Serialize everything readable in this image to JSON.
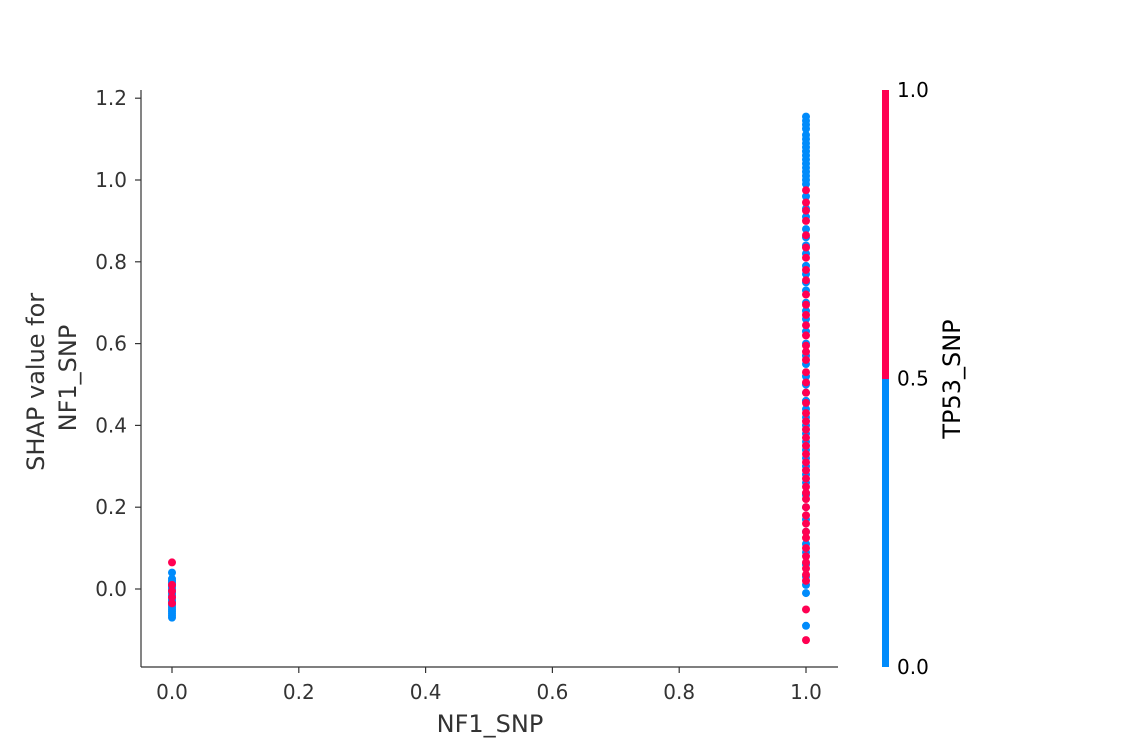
{
  "chart_data": {
    "type": "scatter",
    "xlabel": "NF1_SNP",
    "ylabel_lines": [
      "SHAP value for",
      "NF1_SNP"
    ],
    "xlim": [
      -0.05,
      1.05
    ],
    "ylim": [
      -0.19,
      1.22
    ],
    "xticks": [
      0.0,
      0.2,
      0.4,
      0.6,
      0.8,
      1.0
    ],
    "xtick_labels": [
      "0.0",
      "0.2",
      "0.4",
      "0.6",
      "0.8",
      "1.0"
    ],
    "yticks": [
      0.0,
      0.2,
      0.4,
      0.6,
      0.8,
      1.0,
      1.2
    ],
    "ytick_labels": [
      "0.0",
      "0.2",
      "0.4",
      "0.6",
      "0.8",
      "1.0",
      "1.2"
    ],
    "grid": false,
    "colorbar": {
      "title": "TP53_SNP",
      "ticks": [
        0.0,
        0.5,
        1.0
      ],
      "tick_labels": [
        "0.0",
        "0.5",
        "1.0"
      ],
      "low_color": "#008bfb",
      "high_color": "#ff0052"
    },
    "series": [
      {
        "color_value": 0,
        "points": [
          [
            0,
            -0.07
          ],
          [
            0,
            -0.065
          ],
          [
            0,
            -0.06
          ],
          [
            0,
            -0.055
          ],
          [
            0,
            -0.05
          ],
          [
            0,
            -0.045
          ],
          [
            0,
            -0.04
          ],
          [
            0,
            -0.035
          ],
          [
            0,
            -0.03
          ],
          [
            0,
            -0.025
          ],
          [
            0,
            -0.02
          ],
          [
            0,
            -0.015
          ],
          [
            0,
            -0.01
          ],
          [
            0,
            -0.005
          ],
          [
            0,
            0.0
          ],
          [
            0,
            0.005
          ],
          [
            0,
            0.01
          ],
          [
            0,
            0.015
          ],
          [
            0,
            0.02
          ],
          [
            0,
            0.025
          ],
          [
            0,
            0.04
          ],
          [
            1,
            1.155
          ],
          [
            1,
            1.145
          ],
          [
            1,
            1.135
          ],
          [
            1,
            1.125
          ],
          [
            1,
            1.11
          ],
          [
            1,
            1.1
          ],
          [
            1,
            1.09
          ],
          [
            1,
            1.08
          ],
          [
            1,
            1.07
          ],
          [
            1,
            1.06
          ],
          [
            1,
            1.05
          ],
          [
            1,
            1.04
          ],
          [
            1,
            1.03
          ],
          [
            1,
            1.02
          ],
          [
            1,
            1.01
          ],
          [
            1,
            1.0
          ],
          [
            1,
            0.99
          ],
          [
            1,
            0.96
          ],
          [
            1,
            0.93
          ],
          [
            1,
            0.91
          ],
          [
            1,
            0.88
          ],
          [
            1,
            0.86
          ],
          [
            1,
            0.84
          ],
          [
            1,
            0.82
          ],
          [
            1,
            0.79
          ],
          [
            1,
            0.77
          ],
          [
            1,
            0.75
          ],
          [
            1,
            0.73
          ],
          [
            1,
            0.7
          ],
          [
            1,
            0.68
          ],
          [
            1,
            0.66
          ],
          [
            1,
            0.63
          ],
          [
            1,
            0.6
          ],
          [
            1,
            0.57
          ],
          [
            1,
            0.55
          ],
          [
            1,
            0.52
          ],
          [
            1,
            0.5
          ],
          [
            1,
            0.48
          ],
          [
            1,
            0.46
          ],
          [
            1,
            0.44
          ],
          [
            1,
            0.42
          ],
          [
            1,
            0.4
          ],
          [
            1,
            0.38
          ],
          [
            1,
            0.36
          ],
          [
            1,
            0.34
          ],
          [
            1,
            0.32
          ],
          [
            1,
            0.3
          ],
          [
            1,
            0.28
          ],
          [
            1,
            0.26
          ],
          [
            1,
            0.23
          ],
          [
            1,
            0.2
          ],
          [
            1,
            0.17
          ],
          [
            1,
            0.14
          ],
          [
            1,
            0.11
          ],
          [
            1,
            0.09
          ],
          [
            1,
            0.06
          ],
          [
            1,
            0.03
          ],
          [
            1,
            0.01
          ],
          [
            1,
            -0.01
          ],
          [
            1,
            -0.09
          ]
        ]
      },
      {
        "color_value": 1,
        "points": [
          [
            0,
            0.065
          ],
          [
            0,
            0.01
          ],
          [
            0,
            -0.005
          ],
          [
            0,
            -0.02
          ],
          [
            0,
            -0.035
          ],
          [
            1,
            0.975
          ],
          [
            1,
            0.945
          ],
          [
            1,
            0.925
          ],
          [
            1,
            0.9
          ],
          [
            1,
            0.865
          ],
          [
            1,
            0.835
          ],
          [
            1,
            0.81
          ],
          [
            1,
            0.78
          ],
          [
            1,
            0.755
          ],
          [
            1,
            0.72
          ],
          [
            1,
            0.695
          ],
          [
            1,
            0.67
          ],
          [
            1,
            0.645
          ],
          [
            1,
            0.62
          ],
          [
            1,
            0.595
          ],
          [
            1,
            0.58
          ],
          [
            1,
            0.56
          ],
          [
            1,
            0.53
          ],
          [
            1,
            0.505
          ],
          [
            1,
            0.48
          ],
          [
            1,
            0.455
          ],
          [
            1,
            0.43
          ],
          [
            1,
            0.41
          ],
          [
            1,
            0.39
          ],
          [
            1,
            0.37
          ],
          [
            1,
            0.35
          ],
          [
            1,
            0.33
          ],
          [
            1,
            0.31
          ],
          [
            1,
            0.29
          ],
          [
            1,
            0.27
          ],
          [
            1,
            0.25
          ],
          [
            1,
            0.235
          ],
          [
            1,
            0.22
          ],
          [
            1,
            0.2
          ],
          [
            1,
            0.18
          ],
          [
            1,
            0.16
          ],
          [
            1,
            0.14
          ],
          [
            1,
            0.125
          ],
          [
            1,
            0.1
          ],
          [
            1,
            0.08
          ],
          [
            1,
            0.065
          ],
          [
            1,
            0.05
          ],
          [
            1,
            0.035
          ],
          [
            1,
            0.02
          ],
          [
            1,
            -0.05
          ],
          [
            1,
            -0.125
          ]
        ]
      }
    ]
  }
}
